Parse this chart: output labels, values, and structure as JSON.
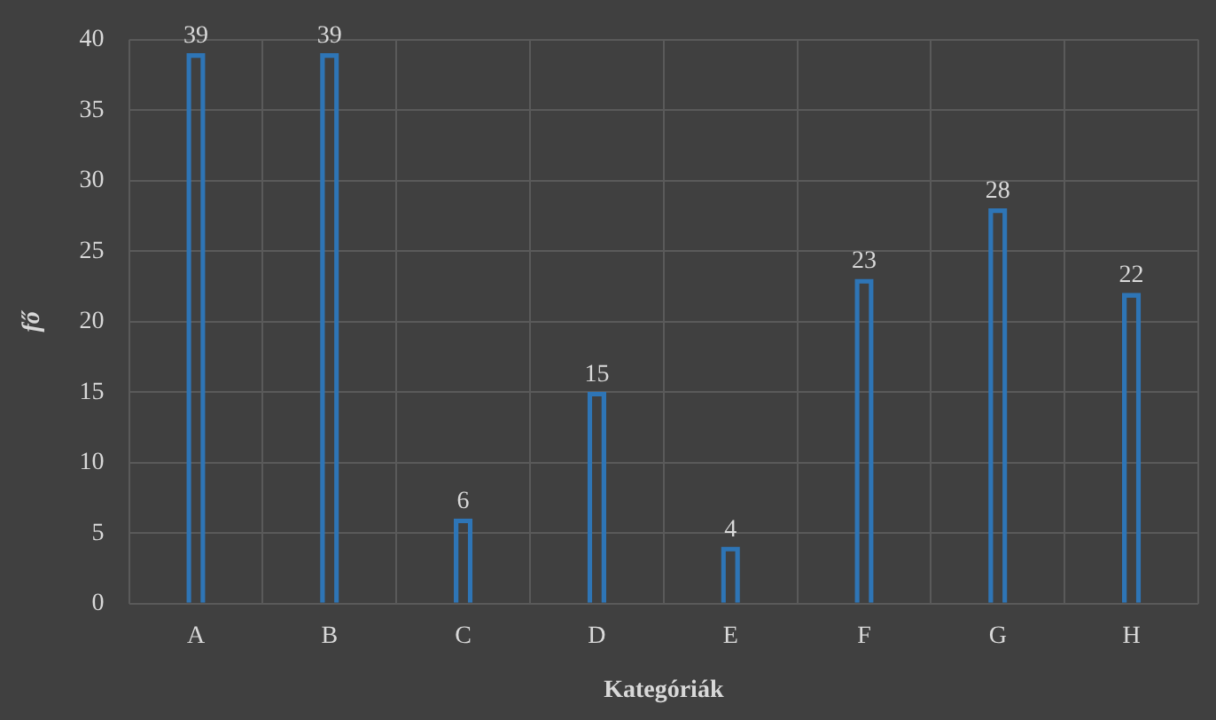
{
  "chart_data": {
    "type": "bar",
    "xlabel": "Kategóriák",
    "ylabel": "fő",
    "categories": [
      "A",
      "B",
      "C",
      "D",
      "E",
      "F",
      "G",
      "H"
    ],
    "values": [
      39,
      39,
      6,
      15,
      4,
      23,
      28,
      22
    ],
    "color": "#2e75b6",
    "ylim": [
      0,
      40
    ],
    "yticks": [
      0,
      5,
      10,
      15,
      20,
      25,
      30,
      35,
      40
    ],
    "grid": true,
    "data_labels": true
  }
}
